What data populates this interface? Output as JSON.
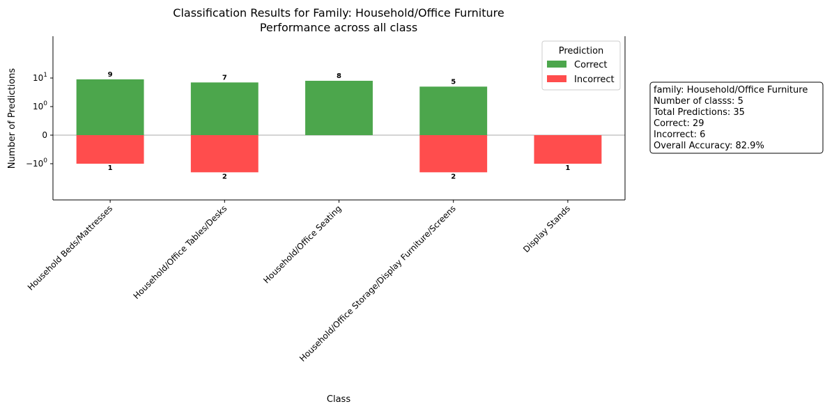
{
  "chart_data": {
    "type": "bar",
    "title": "Classification Results for Family: Household/Office Furniture",
    "subtitle": "Performance across all class",
    "xlabel": "Class",
    "ylabel": "Number of Predictions",
    "yscale": "symlog",
    "ylim": [
      -2.5,
      12
    ],
    "yticks": [
      "-10^0",
      "0",
      "10^0",
      "10^1"
    ],
    "categories": [
      "Household Beds/Mattresses",
      "Household/Office Tables/Desks",
      "Household/Office Seating",
      "Household/Office Storage/Display Furniture/Screens",
      "Display Stands"
    ],
    "series": [
      {
        "name": "Correct",
        "values": [
          9,
          7,
          8,
          5,
          0
        ],
        "color": "#4ca64c"
      },
      {
        "name": "Incorrect",
        "values": [
          1,
          2,
          0,
          2,
          1
        ],
        "color": "#ff4d4d"
      }
    ],
    "legend": {
      "title": "Prediction",
      "placement": "top-right"
    },
    "grid": false,
    "info_box": [
      "family: Household/Office Furniture",
      "Number of classs: 5",
      "Total Predictions: 35",
      "Correct: 29",
      "Incorrect: 6",
      "Overall Accuracy: 82.9%"
    ]
  }
}
